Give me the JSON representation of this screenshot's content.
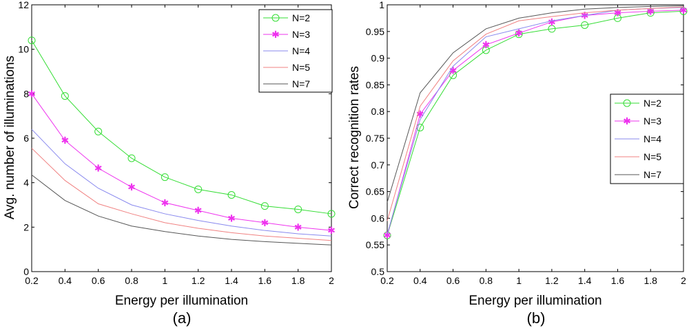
{
  "chart_data": [
    {
      "type": "line",
      "panel_label": "(a)",
      "xlabel": "Energy per illumination",
      "ylabel": "Avg. number of illuminations",
      "x": [
        0.2,
        0.4,
        0.6,
        0.8,
        1.0,
        1.2,
        1.4,
        1.6,
        1.8,
        2.0
      ],
      "xlim": [
        0.2,
        2
      ],
      "ylim": [
        0,
        12
      ],
      "xticks": [
        "0.2",
        "0.4",
        "0.6",
        "0.8",
        "1",
        "1.2",
        "1.4",
        "1.6",
        "1.8",
        "2"
      ],
      "yticks": [
        "0",
        "2",
        "4",
        "6",
        "8",
        "10",
        "12"
      ],
      "legend_position": "top-right",
      "series": [
        {
          "name": "N=2",
          "color": "#33dd33",
          "marker": "circle",
          "values": [
            10.4,
            7.9,
            6.3,
            5.1,
            4.25,
            3.7,
            3.45,
            2.95,
            2.8,
            2.6
          ]
        },
        {
          "name": "N=3",
          "color": "#ee33ee",
          "marker": "star",
          "values": [
            8.0,
            5.9,
            4.65,
            3.8,
            3.1,
            2.75,
            2.4,
            2.2,
            2.0,
            1.85
          ]
        },
        {
          "name": "N=4",
          "color": "#8888ee",
          "marker": "none",
          "values": [
            6.4,
            4.85,
            3.75,
            3.0,
            2.6,
            2.3,
            2.05,
            1.85,
            1.7,
            1.6
          ]
        },
        {
          "name": "N=5",
          "color": "#f08080",
          "marker": "none",
          "values": [
            5.55,
            4.1,
            3.05,
            2.6,
            2.2,
            1.95,
            1.75,
            1.6,
            1.5,
            1.4
          ]
        },
        {
          "name": "N=7",
          "color": "#555555",
          "marker": "none",
          "values": [
            4.35,
            3.2,
            2.5,
            2.05,
            1.8,
            1.6,
            1.45,
            1.35,
            1.27,
            1.2
          ]
        }
      ]
    },
    {
      "type": "line",
      "panel_label": "(b)",
      "xlabel": "Energy per illumination",
      "ylabel": "Correct recognition rates",
      "x": [
        0.2,
        0.4,
        0.6,
        0.8,
        1.0,
        1.2,
        1.4,
        1.6,
        1.8,
        2.0
      ],
      "xlim": [
        0.2,
        2
      ],
      "ylim": [
        0.5,
        1
      ],
      "xticks": [
        "0.2",
        "0.4",
        "0.6",
        "0.8",
        "1",
        "1.2",
        "1.4",
        "1.6",
        "1.8",
        "2"
      ],
      "yticks": [
        "0.5",
        "0.55",
        "0.6",
        "0.65",
        "0.7",
        "0.75",
        "0.8",
        "0.85",
        "0.9",
        "0.95",
        "1"
      ],
      "legend_position": "center-right",
      "series": [
        {
          "name": "N=2",
          "color": "#33dd33",
          "marker": "circle",
          "values": [
            0.568,
            0.77,
            0.868,
            0.915,
            0.945,
            0.955,
            0.962,
            0.975,
            0.985,
            0.988
          ]
        },
        {
          "name": "N=3",
          "color": "#ee33ee",
          "marker": "star",
          "values": [
            0.568,
            0.795,
            0.877,
            0.925,
            0.947,
            0.968,
            0.98,
            0.985,
            0.988,
            0.99
          ]
        },
        {
          "name": "N=4",
          "color": "#8888ee",
          "marker": "none",
          "values": [
            0.57,
            0.785,
            0.885,
            0.94,
            0.955,
            0.97,
            0.98,
            0.99,
            0.993,
            0.995
          ]
        },
        {
          "name": "N=5",
          "color": "#f08080",
          "marker": "none",
          "values": [
            0.595,
            0.81,
            0.895,
            0.945,
            0.97,
            0.978,
            0.985,
            0.99,
            0.993,
            0.996
          ]
        },
        {
          "name": "N=7",
          "color": "#555555",
          "marker": "none",
          "values": [
            0.63,
            0.835,
            0.91,
            0.955,
            0.975,
            0.985,
            0.992,
            0.995,
            0.997,
            0.998
          ]
        }
      ]
    }
  ]
}
